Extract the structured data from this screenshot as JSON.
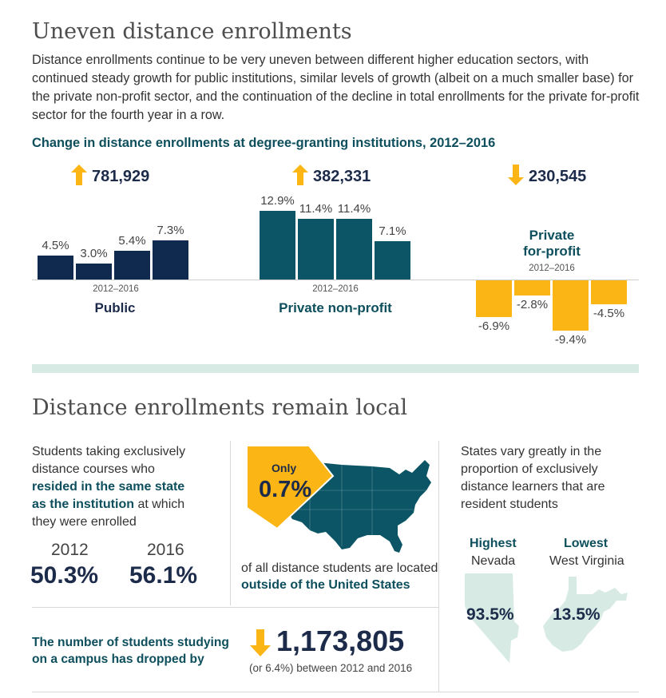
{
  "section1": {
    "title": "Uneven distance enrollments",
    "intro": "Distance enrollments continue to be very uneven between different higher education sectors, with continued steady growth for public institutions, similar levels of growth (albeit on a much smaller base) for the private non-profit sector, and the continuation of the decline in total enrollments for the private for-profit sector for the fourth year in a row."
  },
  "chart_data": {
    "type": "bar",
    "title": "Change in distance enrollments at degree-granting institutions, 2012–2016",
    "groups": [
      {
        "name": "Public",
        "period": "2012–2016",
        "total": "781,929",
        "direction": "up",
        "values": [
          4.5,
          3.0,
          5.4,
          7.3
        ],
        "labels": [
          "4.5%",
          "3.0%",
          "5.4%",
          "7.3%"
        ],
        "color": "#0f2a4e"
      },
      {
        "name": "Private non-profit",
        "period": "2012–2016",
        "total": "382,331",
        "direction": "up",
        "values": [
          12.9,
          11.4,
          11.4,
          7.1
        ],
        "labels": [
          "12.9%",
          "11.4%",
          "11.4%",
          "7.1%"
        ],
        "color": "#0b5566"
      },
      {
        "name_line1": "Private",
        "name_line2": "for-profit",
        "period": "2012–2016",
        "total": "230,545",
        "direction": "down",
        "values": [
          -6.9,
          -2.8,
          -9.4,
          -4.5
        ],
        "labels": [
          "-6.9%",
          "-2.8%",
          "-9.4%",
          "-4.5%"
        ],
        "color": "#fbb515"
      }
    ]
  },
  "section2": {
    "title": "Distance enrollments remain local",
    "same_state": {
      "line1": "Students taking exclusively",
      "line2": "distance courses who",
      "bold1": "resided in the same state",
      "bold2": "as the institution",
      "rest2": " at which",
      "line5": "they were enrolled",
      "year1": "2012",
      "value1": "50.3%",
      "year2": "2016",
      "value2": "56.1%"
    },
    "outside_us": {
      "only": "Only",
      "pct": "0.7%",
      "caption1": "of all distance students are located",
      "caption2": "outside of the United States"
    },
    "states": {
      "line1": "States vary greatly in the",
      "line2": "proportion of exclusively",
      "line3": "distance learners that are",
      "line4": "resident students",
      "highest_label": "Highest",
      "highest_state": "Nevada",
      "highest_value": "93.5%",
      "lowest_label": "Lowest",
      "lowest_state": "West Virginia",
      "lowest_value": "13.5%"
    },
    "campus": {
      "line1": "The number of students studying",
      "line2": "on a campus has dropped by",
      "value": "1,173,805",
      "note": "(or 6.4%) between 2012 and 2016"
    }
  },
  "colors": {
    "navy": "#1c2b4a",
    "teal_dark": "#0d4f5c",
    "map_teal": "#0b5566",
    "gold": "#fbb515",
    "mint": "#d7ebe4"
  },
  "icons": [
    "arrow-up-icon",
    "arrow-down-icon",
    "us-map-icon",
    "nevada-map-icon",
    "west-virginia-map-icon"
  ]
}
